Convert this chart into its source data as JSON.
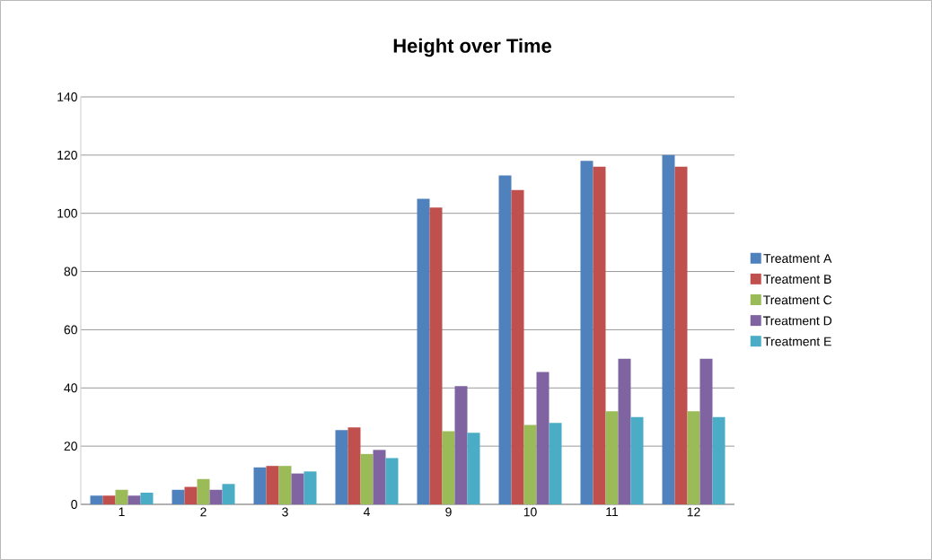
{
  "chart_data": {
    "type": "bar",
    "title": "Height over Time",
    "categories": [
      "1",
      "2",
      "3",
      "4",
      "9",
      "10",
      "11",
      "12"
    ],
    "series": [
      {
        "name": "Treatment A",
        "color": "#4f81bd",
        "values": [
          3,
          5,
          12.7,
          25.5,
          105,
          113,
          118,
          120
        ]
      },
      {
        "name": "Treatment B",
        "color": "#c0504d",
        "values": [
          3,
          6,
          13.2,
          26.4,
          102,
          108,
          116,
          116
        ]
      },
      {
        "name": "Treatment C",
        "color": "#9bbb59",
        "values": [
          5,
          8.7,
          13.2,
          17.3,
          25.1,
          27.3,
          32,
          32
        ]
      },
      {
        "name": "Treatment D",
        "color": "#8064a2",
        "values": [
          3,
          5,
          10.6,
          18.7,
          40.6,
          45.5,
          50,
          50
        ]
      },
      {
        "name": "Treatment E",
        "color": "#4bacc6",
        "values": [
          4,
          7,
          11.3,
          15.9,
          24.6,
          28,
          30,
          30
        ]
      }
    ],
    "ylim": [
      0,
      140
    ],
    "yticks": [
      0,
      20,
      40,
      60,
      80,
      100,
      120,
      140
    ],
    "grid": "y",
    "legend": "right"
  }
}
